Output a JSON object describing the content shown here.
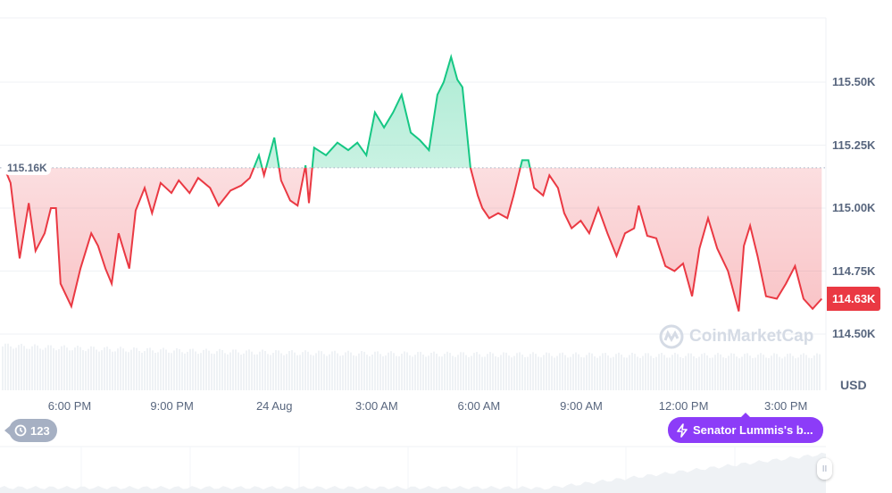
{
  "chart_data": {
    "type": "area",
    "currency_label": "USD",
    "baseline_value": 115.16,
    "baseline_label": "115.16K",
    "current_value": 114.63,
    "current_label": "114.63K",
    "ylim": [
      114.4,
      115.65
    ],
    "yticks": [
      {
        "value": 115.5,
        "label": "115.50K"
      },
      {
        "value": 115.25,
        "label": "115.25K"
      },
      {
        "value": 115.0,
        "label": "115.00K"
      },
      {
        "value": 114.75,
        "label": "114.75K"
      },
      {
        "value": 114.5,
        "label": "114.50K"
      }
    ],
    "xticks": [
      {
        "time": "08-23 18:00",
        "label": "6:00 PM"
      },
      {
        "time": "08-23 21:00",
        "label": "9:00 PM"
      },
      {
        "time": "08-24 00:00",
        "label": "24 Aug"
      },
      {
        "time": "08-24 03:00",
        "label": "3:00 AM"
      },
      {
        "time": "08-24 06:00",
        "label": "6:00 AM"
      },
      {
        "time": "08-24 09:00",
        "label": "9:00 AM"
      },
      {
        "time": "08-24 12:00",
        "label": "12:00 PM"
      },
      {
        "time": "08-24 15:00",
        "label": "3:00 PM"
      }
    ],
    "colors": {
      "up": "#16c784",
      "down": "#ea3943",
      "event": "#8c3cf8",
      "badge": "#a6b0c3"
    },
    "grid": true,
    "points": [
      [
        "08-23 16:05",
        115.16
      ],
      [
        "08-23 16:16",
        115.1
      ],
      [
        "08-23 16:32",
        114.8
      ],
      [
        "08-23 16:48",
        115.02
      ],
      [
        "08-23 17:00",
        114.83
      ],
      [
        "08-23 17:16",
        114.9
      ],
      [
        "08-23 17:27",
        115.0
      ],
      [
        "08-23 17:36",
        115.0
      ],
      [
        "08-23 17:44",
        114.7
      ],
      [
        "08-23 18:03",
        114.61
      ],
      [
        "08-23 18:19",
        114.76
      ],
      [
        "08-23 18:38",
        114.9
      ],
      [
        "08-23 18:50",
        114.85
      ],
      [
        "08-23 19:03",
        114.76
      ],
      [
        "08-23 19:14",
        114.7
      ],
      [
        "08-23 19:26",
        114.9
      ],
      [
        "08-23 19:45",
        114.76
      ],
      [
        "08-23 19:56",
        114.99
      ],
      [
        "08-23 20:12",
        115.08
      ],
      [
        "08-23 20:25",
        114.98
      ],
      [
        "08-23 20:40",
        115.1
      ],
      [
        "08-23 20:59",
        115.06
      ],
      [
        "08-23 21:12",
        115.11
      ],
      [
        "08-23 21:31",
        115.06
      ],
      [
        "08-23 21:46",
        115.12
      ],
      [
        "08-23 22:07",
        115.08
      ],
      [
        "08-23 22:22",
        115.01
      ],
      [
        "08-23 22:43",
        115.07
      ],
      [
        "08-23 23:02",
        115.09
      ],
      [
        "08-23 23:17",
        115.12
      ],
      [
        "08-23 23:33",
        115.21
      ],
      [
        "08-23 23:42",
        115.13
      ],
      [
        "08-24 00:00",
        115.28
      ],
      [
        "08-24 00:12",
        115.11
      ],
      [
        "08-24 00:28",
        115.03
      ],
      [
        "08-24 00:41",
        115.01
      ],
      [
        "08-24 00:55",
        115.17
      ],
      [
        "08-24 01:01",
        115.02
      ],
      [
        "08-24 01:10",
        115.24
      ],
      [
        "08-24 01:31",
        115.21
      ],
      [
        "08-24 01:51",
        115.26
      ],
      [
        "08-24 02:10",
        115.23
      ],
      [
        "08-24 02:26",
        115.26
      ],
      [
        "08-24 02:42",
        115.21
      ],
      [
        "08-24 02:57",
        115.38
      ],
      [
        "08-24 03:13",
        115.32
      ],
      [
        "08-24 03:29",
        115.38
      ],
      [
        "08-24 03:44",
        115.45
      ],
      [
        "08-24 04:00",
        115.3
      ],
      [
        "08-24 04:16",
        115.27
      ],
      [
        "08-24 04:32",
        115.23
      ],
      [
        "08-24 04:47",
        115.45
      ],
      [
        "08-24 04:58",
        115.5
      ],
      [
        "08-24 05:11",
        115.6
      ],
      [
        "08-24 05:22",
        115.51
      ],
      [
        "08-24 05:31",
        115.48
      ],
      [
        "08-24 05:45",
        115.16
      ],
      [
        "08-24 05:58",
        115.05
      ],
      [
        "08-24 06:06",
        115.0
      ],
      [
        "08-24 06:18",
        114.96
      ],
      [
        "08-24 06:34",
        114.98
      ],
      [
        "08-24 06:50",
        114.96
      ],
      [
        "08-24 07:01",
        115.05
      ],
      [
        "08-24 07:16",
        115.19
      ],
      [
        "08-24 07:27",
        115.19
      ],
      [
        "08-24 07:37",
        115.08
      ],
      [
        "08-24 07:53",
        115.05
      ],
      [
        "08-24 08:04",
        115.13
      ],
      [
        "08-24 08:19",
        115.08
      ],
      [
        "08-24 08:30",
        114.98
      ],
      [
        "08-24 08:43",
        114.92
      ],
      [
        "08-24 08:59",
        114.95
      ],
      [
        "08-24 09:14",
        114.9
      ],
      [
        "08-24 09:30",
        115.0
      ],
      [
        "08-24 09:46",
        114.9
      ],
      [
        "08-24 10:02",
        114.81
      ],
      [
        "08-24 10:17",
        114.9
      ],
      [
        "08-24 10:33",
        114.92
      ],
      [
        "08-24 10:41",
        115.01
      ],
      [
        "08-24 10:56",
        114.89
      ],
      [
        "08-24 11:12",
        114.88
      ],
      [
        "08-24 11:28",
        114.77
      ],
      [
        "08-24 11:44",
        114.75
      ],
      [
        "08-24 11:59",
        114.78
      ],
      [
        "08-24 12:15",
        114.65
      ],
      [
        "08-24 12:28",
        114.84
      ],
      [
        "08-24 12:43",
        114.96
      ],
      [
        "08-24 12:59",
        114.84
      ],
      [
        "08-24 13:18",
        114.75
      ],
      [
        "08-24 13:37",
        114.59
      ],
      [
        "08-24 13:46",
        114.85
      ],
      [
        "08-24 13:57",
        114.93
      ],
      [
        "08-24 14:10",
        114.81
      ],
      [
        "08-24 14:25",
        114.65
      ],
      [
        "08-24 14:44",
        114.64
      ],
      [
        "08-24 15:00",
        114.7
      ],
      [
        "08-24 15:16",
        114.77
      ],
      [
        "08-24 15:31",
        114.64
      ],
      [
        "08-24 15:47",
        114.6
      ],
      [
        "08-24 16:03",
        114.64
      ]
    ]
  },
  "watermark": "CoinMarketCap",
  "history_badge": {
    "icon": "history-icon",
    "count": "123"
  },
  "event_pill": {
    "icon": "lightning-icon",
    "label": "Senator Lummis's b..."
  },
  "navigator_handle": {
    "icon": "pause-handle-icon",
    "label": "II"
  }
}
